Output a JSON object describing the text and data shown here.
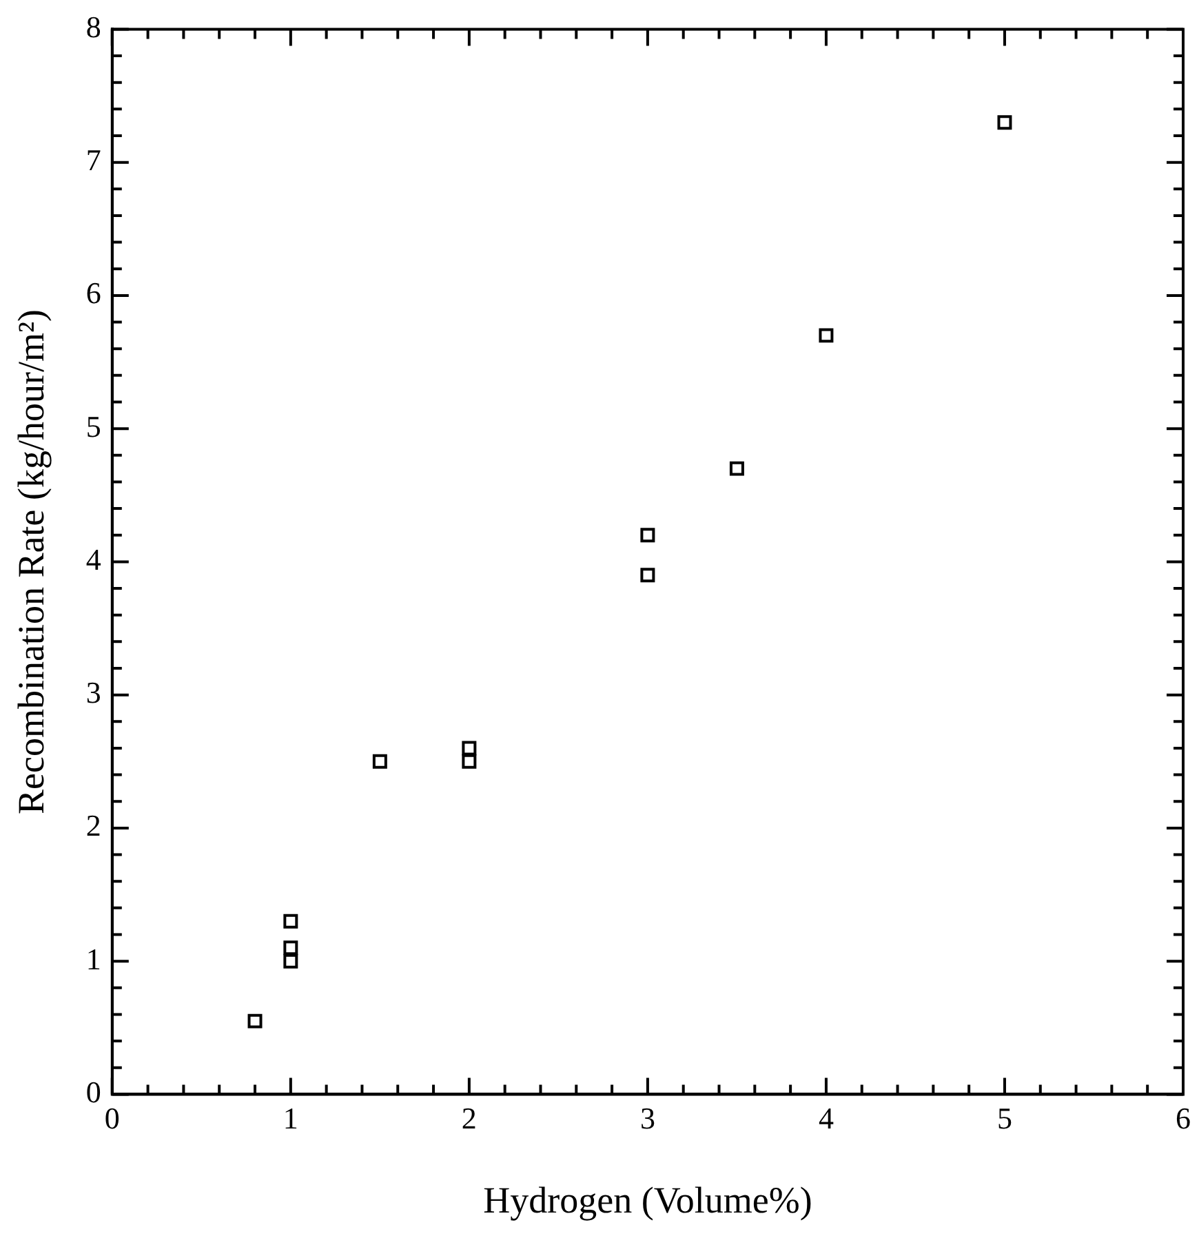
{
  "chart_data": {
    "type": "scatter",
    "xlabel": "Hydrogen (Volume%)",
    "ylabel": "Recombination Rate (kg/hour/m²)",
    "x": [
      0.8,
      1.0,
      1.0,
      1.0,
      1.5,
      2.0,
      2.0,
      3.0,
      3.0,
      3.5,
      4.0,
      5.0
    ],
    "series": [
      {
        "color": "#000000",
        "values": [
          0.55,
          1.3,
          1.1,
          1.0,
          2.5,
          2.6,
          2.5,
          4.2,
          3.9,
          4.7,
          5.7,
          7.3
        ]
      }
    ],
    "marker": "square",
    "grid": false,
    "legend": false,
    "xlim": [
      0,
      6
    ],
    "ylim": [
      0,
      8
    ],
    "xticks": [
      0,
      {
        "value": 0.2,
        "label": null
      },
      {
        "value": 0.4,
        "label": null
      },
      {
        "value": 0.6,
        "label": null
      },
      {
        "value": 0.8,
        "label": null
      },
      1,
      {
        "value": 1.2,
        "label": null
      },
      {
        "value": 1.4,
        "label": null
      },
      {
        "value": 1.6,
        "label": null
      },
      {
        "value": 1.8,
        "label": null
      },
      2,
      {
        "value": 2.2,
        "label": null
      },
      {
        "value": 2.4,
        "label": null
      },
      {
        "value": 2.6,
        "label": null
      },
      {
        "value": 2.8,
        "label": null
      },
      3,
      {
        "value": 3.2,
        "label": null
      },
      {
        "value": 3.4,
        "label": null
      },
      {
        "value": 3.6,
        "label": null
      },
      {
        "value": 3.8,
        "label": null
      },
      4,
      {
        "value": 4.2,
        "label": null
      },
      {
        "value": 4.4,
        "label": null
      },
      {
        "value": 4.6,
        "label": null
      },
      {
        "value": 4.8,
        "label": null
      },
      5,
      {
        "value": 5.2,
        "label": null
      },
      {
        "value": 5.4,
        "label": null
      },
      {
        "value": 5.6,
        "label": null
      },
      {
        "value": 5.8,
        "label": null
      },
      6
    ],
    "yticks": [
      0,
      {
        "value": 0.2,
        "label": null
      },
      {
        "value": 0.4,
        "label": null
      },
      {
        "value": 0.6,
        "label": null
      },
      {
        "value": 0.8,
        "label": null
      },
      1,
      {
        "value": 1.2,
        "label": null
      },
      {
        "value": 1.4,
        "label": null
      },
      {
        "value": 1.6,
        "label": null
      },
      {
        "value": 1.8,
        "label": null
      },
      2,
      {
        "value": 2.2,
        "label": null
      },
      {
        "value": 2.4,
        "label": null
      },
      {
        "value": 2.6,
        "label": null
      },
      {
        "value": 2.8,
        "label": null
      },
      3,
      {
        "value": 3.2,
        "label": null
      },
      {
        "value": 3.4,
        "label": null
      },
      {
        "value": 3.6,
        "label": null
      },
      {
        "value": 3.8,
        "label": null
      },
      4,
      {
        "value": 4.2,
        "label": null
      },
      {
        "value": 4.4,
        "label": null
      },
      {
        "value": 4.6,
        "label": null
      },
      {
        "value": 4.8,
        "label": null
      },
      5,
      {
        "value": 5.2,
        "label": null
      },
      {
        "value": 5.4,
        "label": null
      },
      {
        "value": 5.6,
        "label": null
      },
      {
        "value": 5.8,
        "label": null
      },
      6,
      {
        "value": 6.2,
        "label": null
      },
      {
        "value": 6.4,
        "label": null
      },
      {
        "value": 6.6,
        "label": null
      },
      {
        "value": 6.8,
        "label": null
      },
      7,
      {
        "value": 7.2,
        "label": null
      },
      {
        "value": 7.4,
        "label": null
      },
      {
        "value": 7.6,
        "label": null
      },
      {
        "value": 7.8,
        "label": null
      },
      8
    ]
  }
}
